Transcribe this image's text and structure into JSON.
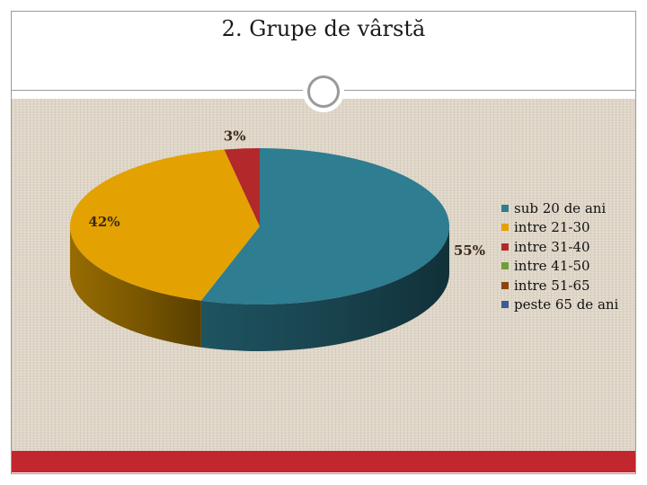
{
  "slide": {
    "title": "2. Grupe de vârstă"
  },
  "chart_data": {
    "type": "pie",
    "style": "3d",
    "categories": [
      "sub 20 de ani",
      "intre 21-30",
      "intre 31-40",
      "intre 41-50",
      "intre 51-65",
      "peste 65 de ani"
    ],
    "values": [
      55,
      42,
      3,
      0,
      0,
      0
    ],
    "data_labels": [
      "55%",
      "42%",
      "3%",
      "",
      "",
      ""
    ],
    "colors": [
      "#2e7d91",
      "#e3a202",
      "#b3282b",
      "#6e9f3a",
      "#8b4513",
      "#3b5b94"
    ],
    "legend_position": "right"
  }
}
